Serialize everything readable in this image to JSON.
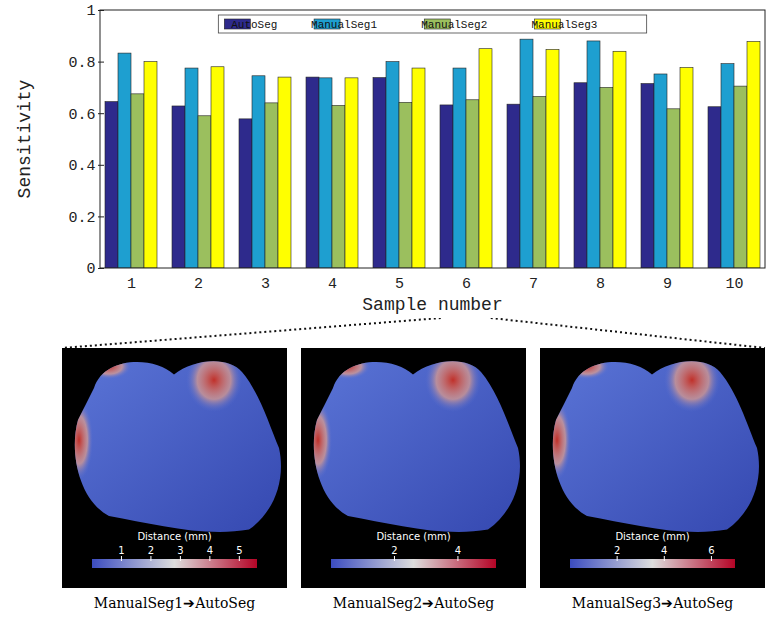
{
  "chart_data": [
    {
      "type": "bar",
      "xlabel": "Sample number",
      "ylabel": "Sensitivity",
      "categories": [
        "1",
        "2",
        "3",
        "4",
        "5",
        "6",
        "7",
        "8",
        "9",
        "10"
      ],
      "series": [
        {
          "name": "AutoSeg",
          "color": "#2e2a8c",
          "values": [
            0.645,
            0.628,
            0.578,
            0.74,
            0.738,
            0.632,
            0.635,
            0.718,
            0.715,
            0.625
          ]
        },
        {
          "name": "ManualSeg1",
          "color": "#1e9fd0",
          "values": [
            0.833,
            0.775,
            0.745,
            0.737,
            0.8,
            0.775,
            0.887,
            0.88,
            0.752,
            0.792
          ]
        },
        {
          "name": "ManualSeg2",
          "color": "#9bbf5e",
          "values": [
            0.675,
            0.59,
            0.64,
            0.63,
            0.642,
            0.652,
            0.665,
            0.7,
            0.617,
            0.705
          ]
        },
        {
          "name": "ManualSeg3",
          "color": "#ffff00",
          "values": [
            0.8,
            0.78,
            0.74,
            0.737,
            0.775,
            0.85,
            0.847,
            0.84,
            0.777,
            0.878
          ]
        }
      ],
      "ylim": [
        0,
        1
      ],
      "yticks": [
        0,
        0.2,
        0.4,
        0.6,
        0.8,
        1
      ],
      "legend": "top",
      "grid": false
    },
    {
      "type": "surface",
      "title": "ManualSeg1➔AutoSeg",
      "colorbar": {
        "label": "Distance (mm)",
        "range": [
          0,
          5.6
        ],
        "ticks": [
          1,
          2,
          3,
          4,
          5
        ]
      }
    },
    {
      "type": "surface",
      "title": "ManualSeg2➔AutoSeg",
      "colorbar": {
        "label": "Distance (mm)",
        "range": [
          0,
          5.2
        ],
        "ticks": [
          2,
          4
        ]
      }
    },
    {
      "type": "surface",
      "title": "ManualSeg3➔AutoSeg",
      "colorbar": {
        "label": "Distance (mm)",
        "range": [
          0,
          7
        ],
        "ticks": [
          2,
          4,
          6
        ]
      }
    }
  ]
}
